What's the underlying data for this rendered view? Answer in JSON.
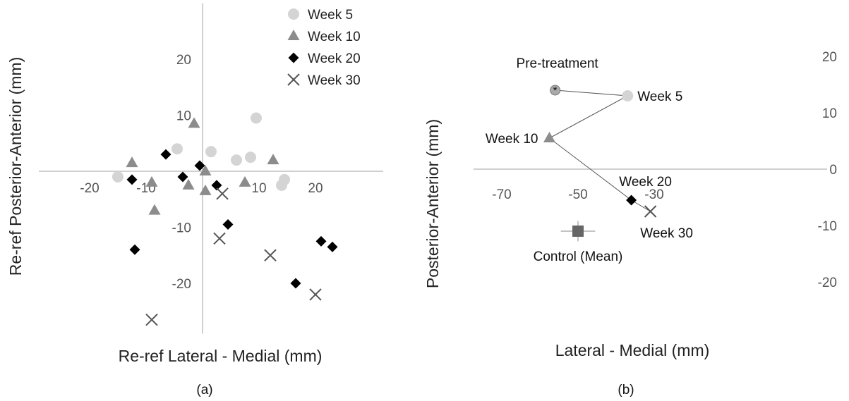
{
  "figure": {
    "panel_labels": [
      "(a)",
      "(b)"
    ]
  },
  "chart_data": [
    {
      "type": "scatter",
      "panel": "(a)",
      "title": "",
      "xlabel": "Re-ref Lateral - Medial (mm)",
      "ylabel": "Re-ref Posterior-Anterior (mm)",
      "xlim": [
        -29,
        32
      ],
      "ylim": [
        -29,
        30
      ],
      "x_ticks": [
        -20,
        -10,
        10,
        20
      ],
      "y_ticks": [
        20,
        10,
        -10,
        -20
      ],
      "grid": false,
      "legend_position": "top-right",
      "series": [
        {
          "name": "Week 5",
          "marker": "circle",
          "color": "#d4d4d4",
          "points": [
            [
              -15,
              -1
            ],
            [
              -4.5,
              4
            ],
            [
              1.5,
              3.5
            ],
            [
              6,
              2
            ],
            [
              8.5,
              2.5
            ],
            [
              9.5,
              9.5
            ],
            [
              14.5,
              -1.5
            ],
            [
              14,
              -2.5
            ]
          ]
        },
        {
          "name": "Week 10",
          "marker": "triangle",
          "color": "#8c8c8c",
          "points": [
            [
              -12.5,
              1.5
            ],
            [
              -9,
              -2
            ],
            [
              -8.5,
              -7
            ],
            [
              -2.5,
              -2.5
            ],
            [
              -1.5,
              8.5
            ],
            [
              0.5,
              0
            ],
            [
              0.5,
              -3.5
            ],
            [
              7.5,
              -2
            ],
            [
              12.5,
              2
            ]
          ]
        },
        {
          "name": "Week 20",
          "marker": "diamond",
          "color": "#000000",
          "points": [
            [
              -12.5,
              -1.5
            ],
            [
              -12,
              -14
            ],
            [
              -6.5,
              3
            ],
            [
              -3.5,
              -1
            ],
            [
              -0.5,
              1
            ],
            [
              2.5,
              -2.5
            ],
            [
              4.5,
              -9.5
            ],
            [
              16.5,
              -20
            ],
            [
              21,
              -12.5
            ],
            [
              23,
              -13.5
            ]
          ]
        },
        {
          "name": "Week 30",
          "marker": "x",
          "color": "#555555",
          "points": [
            [
              -9,
              -26.5
            ],
            [
              3,
              -12
            ],
            [
              3.5,
              -4
            ],
            [
              12,
              -15
            ],
            [
              20,
              -22
            ]
          ]
        }
      ]
    },
    {
      "type": "line",
      "panel": "(b)",
      "title": "",
      "xlabel": "Lateral - Medial (mm)",
      "ylabel": "Posterior-Anterior (mm)",
      "xlim": [
        -80,
        -20
      ],
      "ylim": [
        -29,
        29
      ],
      "x_ticks": [
        -70,
        -50,
        -30
      ],
      "y_ticks": [
        20,
        10,
        0,
        -10,
        -20
      ],
      "grid": false,
      "path": [
        {
          "label": "Pre-treatment",
          "x": -56,
          "y": 14,
          "marker": "asterisk-circle",
          "color": "#aaaaaa"
        },
        {
          "label": "Week 5",
          "x": -37,
          "y": 13,
          "marker": "circle",
          "color": "#d4d4d4"
        },
        {
          "label": "Week 10",
          "x": -57.5,
          "y": 5.5,
          "marker": "triangle",
          "color": "#8c8c8c"
        },
        {
          "label": "Week 20",
          "x": -36,
          "y": -5.5,
          "marker": "diamond",
          "color": "#000000"
        },
        {
          "label": "Week 30",
          "x": -31,
          "y": -7.5,
          "marker": "x",
          "color": "#555555"
        }
      ],
      "control": {
        "label": "Control (Mean)",
        "x": -50,
        "y": -11,
        "x_err": 4.5,
        "y_err": 1.8,
        "marker": "square",
        "color": "#666666"
      }
    }
  ]
}
